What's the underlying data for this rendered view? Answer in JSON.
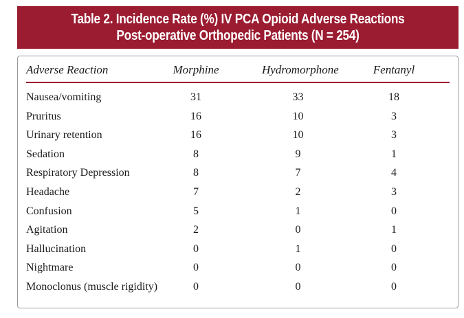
{
  "title": {
    "line1": "Table 2. Incidence Rate (%) IV PCA Opioid Adverse Reactions",
    "line2": "Post-operative Orthopedic Patients (N = 254)"
  },
  "table": {
    "headers": [
      "Adverse Reaction",
      "Morphine",
      "Hydromorphone",
      "Fentanyl"
    ],
    "rows": [
      [
        "Nausea/vomiting",
        "31",
        "33",
        "18"
      ],
      [
        "Pruritus",
        "16",
        "10",
        "3"
      ],
      [
        "Urinary retention",
        "16",
        "10",
        "3"
      ],
      [
        "Sedation",
        "8",
        "9",
        "1"
      ],
      [
        "Respiratory Depression",
        "8",
        "7",
        "4"
      ],
      [
        "Headache",
        "7",
        "2",
        "3"
      ],
      [
        "Confusion",
        "5",
        "1",
        "0"
      ],
      [
        "Agitation",
        "2",
        "0",
        "1"
      ],
      [
        "Hallucination",
        "0",
        "1",
        "0"
      ],
      [
        "Nightmare",
        "0",
        "0",
        "0"
      ],
      [
        "Monoclonus (muscle rigidity)",
        "0",
        "0",
        "0"
      ]
    ]
  },
  "colors": {
    "accent": "#9b1b30",
    "text": "#1a1a1a",
    "border": "#9a9a9a"
  }
}
